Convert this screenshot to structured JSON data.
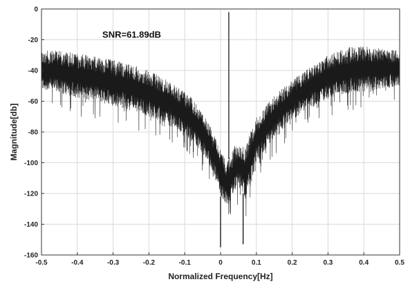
{
  "chart_data": {
    "type": "line",
    "title": "",
    "xlabel": "Normalized Frequency[Hz]",
    "ylabel": "Magnitude[db]",
    "xlim": [
      -0.5,
      0.5
    ],
    "ylim": [
      -160,
      0
    ],
    "grid": true,
    "xticks": [
      "-0.5",
      "-0.4",
      "-0.3",
      "-0.2",
      "-0.1",
      "0",
      "0.1",
      "0.2",
      "0.3",
      "0.4",
      "0.5"
    ],
    "yticks": [
      "0",
      "-20",
      "-40",
      "-60",
      "-80",
      "-100",
      "-120",
      "-140",
      "-160"
    ],
    "annotation": {
      "text": "SNR=61.89dB",
      "x": -0.33,
      "y": -7
    },
    "colors": {
      "trace": "#1a1a1a",
      "grid": "#d9d9d9",
      "axes": "#333333"
    },
    "signal_peak": {
      "x": 0.023,
      "y": -2
    },
    "series": [
      {
        "upper_envelope": {
          "x": [
            -0.5,
            -0.45,
            -0.4,
            -0.35,
            -0.3,
            -0.25,
            -0.2,
            -0.15,
            -0.1,
            -0.07,
            -0.05,
            -0.03,
            -0.01,
            0.0,
            0.01,
            0.02,
            0.03,
            0.04,
            0.05,
            0.06,
            0.07,
            0.08,
            0.1,
            0.15,
            0.2,
            0.25,
            0.3,
            0.35,
            0.4,
            0.45,
            0.5
          ],
          "y": [
            -27,
            -27,
            -29,
            -31,
            -33,
            -36,
            -40,
            -46,
            -54,
            -60,
            -67,
            -76,
            -86,
            -92,
            -96,
            -99,
            -94,
            -89,
            -88,
            -89,
            -90,
            -82,
            -70,
            -56,
            -46,
            -38,
            -30,
            -25,
            -24,
            -26,
            -27
          ]
        },
        "lower_envelope": {
          "x": [
            -0.5,
            -0.45,
            -0.4,
            -0.35,
            -0.3,
            -0.25,
            -0.2,
            -0.15,
            -0.1,
            -0.07,
            -0.05,
            -0.03,
            -0.01,
            0.0,
            0.01,
            0.02,
            0.03,
            0.04,
            0.05,
            0.06,
            0.07,
            0.08,
            0.1,
            0.15,
            0.2,
            0.25,
            0.3,
            0.35,
            0.4,
            0.45,
            0.5
          ],
          "y": [
            -53,
            -55,
            -58,
            -60,
            -63,
            -66,
            -70,
            -75,
            -82,
            -88,
            -94,
            -102,
            -112,
            -122,
            -126,
            -128,
            -124,
            -118,
            -116,
            -118,
            -124,
            -118,
            -100,
            -84,
            -72,
            -64,
            -59,
            -56,
            -54,
            -52,
            -50
          ]
        }
      }
    ],
    "notches": [
      {
        "x": 0.0,
        "y": -155
      },
      {
        "x": 0.063,
        "y": -153
      }
    ]
  }
}
